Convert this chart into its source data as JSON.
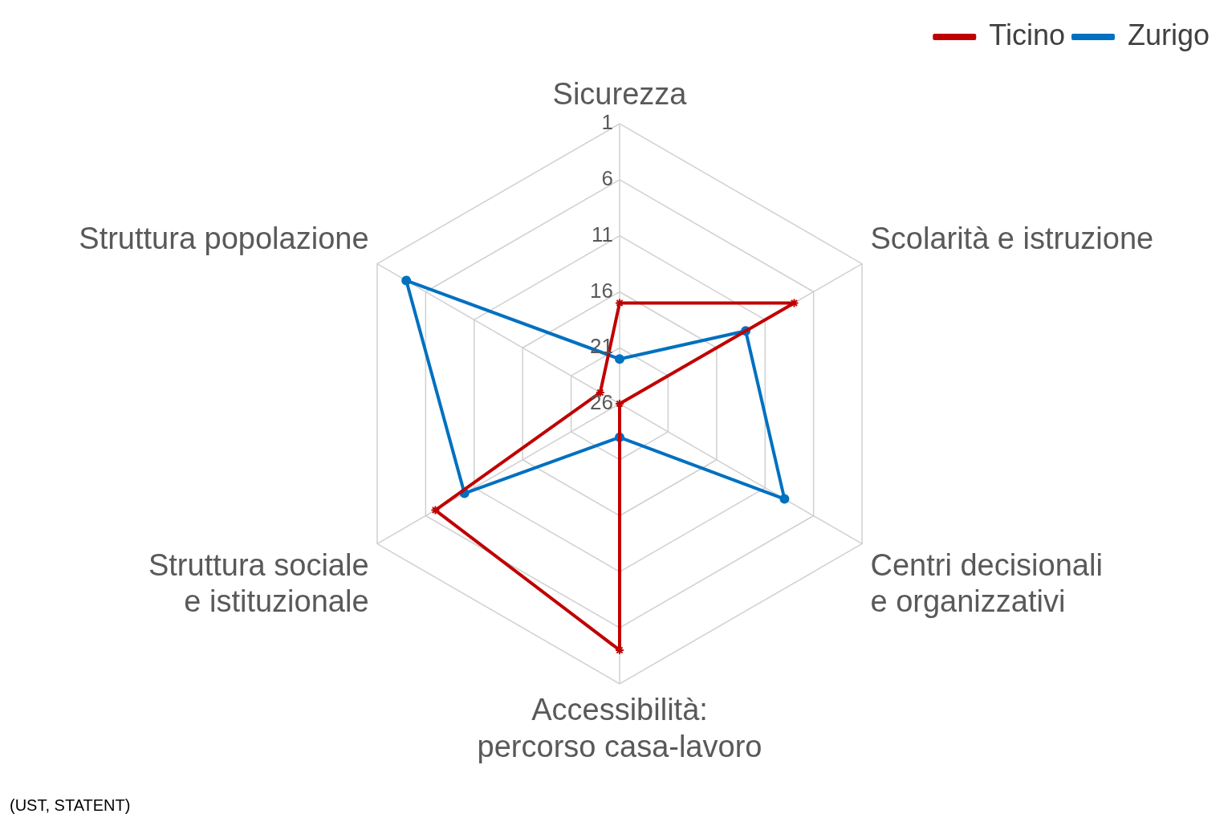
{
  "chart_data": {
    "type": "radar",
    "categories": [
      "Sicurezza",
      "Scolarità e istruzione",
      "Centri decisionali e organizzativi",
      "Accessibilità: percorso casa-lavoro",
      "Struttura sociale e istituzionale",
      "Struttura popolazione"
    ],
    "series": [
      {
        "name": "Ticino",
        "color": "#c00000",
        "marker": "star",
        "values": [
          17,
          8,
          26,
          4,
          7,
          24
        ]
      },
      {
        "name": "Zurigo",
        "color": "#0070c0",
        "values": [
          22,
          13,
          9,
          23,
          10,
          4
        ]
      }
    ],
    "ylim": [
      26,
      1
    ],
    "yticks": [
      1,
      6,
      11,
      16,
      21,
      26
    ],
    "grid": true,
    "legend": "top right",
    "marker": "circle",
    "line_style": "solid",
    "annotations": [
      "(UST, STATENT)"
    ]
  }
}
